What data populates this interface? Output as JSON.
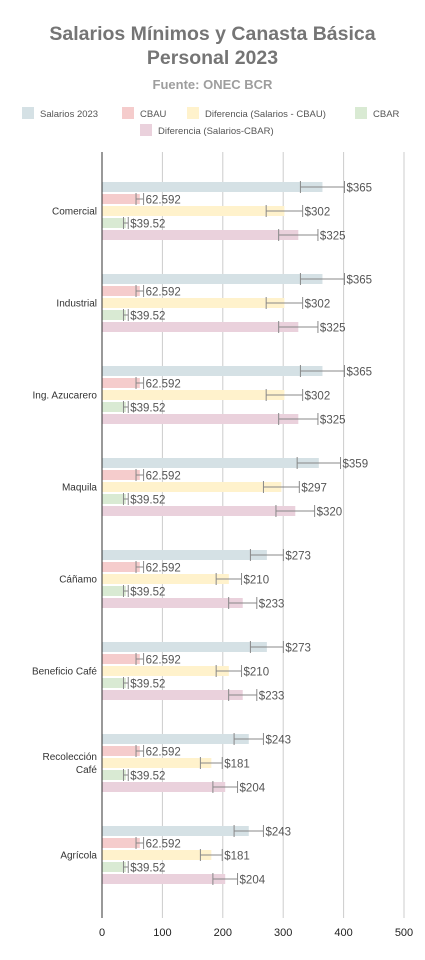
{
  "chart_data": {
    "type": "bar",
    "orientation": "horizontal",
    "title_lines": [
      "Salarios Mínimos y Canasta Básica",
      "Personal 2023"
    ],
    "subtitle": "Fuente: ONEC BCR",
    "xlim": [
      0,
      500
    ],
    "xticks": [
      "0",
      "100",
      "200",
      "300",
      "400",
      "500"
    ],
    "xtick_values": [
      0,
      100,
      200,
      300,
      400,
      500
    ],
    "grid": true,
    "legend_position": "top",
    "categories": [
      {
        "lines": [
          "Comercial"
        ]
      },
      {
        "lines": [
          "Industrial"
        ]
      },
      {
        "lines": [
          "Ing. Azucarero"
        ]
      },
      {
        "lines": [
          "Maquila"
        ]
      },
      {
        "lines": [
          "Cáñamo"
        ]
      },
      {
        "lines": [
          "Beneficio Café"
        ]
      },
      {
        "lines": [
          "Recolección",
          "Café"
        ]
      },
      {
        "lines": [
          "Agrícola"
        ]
      }
    ],
    "series": [
      {
        "name": "Salarios 2023",
        "color": "#d5e1e5",
        "values": [
          365,
          365,
          365,
          359,
          273,
          273,
          243,
          243
        ],
        "labels": [
          "$365",
          "$365",
          "$365",
          "$359",
          "$273",
          "$273",
          "$243",
          "$243"
        ]
      },
      {
        "name": "CBAU",
        "color": "#f5cccc",
        "values": [
          62.592,
          62.592,
          62.592,
          62.592,
          62.592,
          62.592,
          62.592,
          62.592
        ],
        "labels": [
          "62.592",
          "62.592",
          "62.592",
          "62.592",
          "62.592",
          "62.592",
          "62.592",
          "62.592"
        ]
      },
      {
        "name": "Diferencia (Salarios - CBAU)",
        "color": "#fff2cc",
        "values": [
          302,
          302,
          302,
          297,
          210,
          210,
          181,
          181
        ],
        "labels": [
          "$302",
          "$302",
          "$302",
          "$297",
          "$210",
          "$210",
          "$181",
          "$181"
        ]
      },
      {
        "name": "CBAR",
        "color": "#d9ead3",
        "values": [
          39.52,
          39.52,
          39.52,
          39.52,
          39.52,
          39.52,
          39.52,
          39.52
        ],
        "labels": [
          "$39.52",
          "$39.52",
          "$39.52",
          "$39.52",
          "$39.52",
          "$39.52",
          "$39.52",
          "$39.52"
        ]
      },
      {
        "name": "Diferencia (Salarios-CBAR)",
        "color": "#ead1dc",
        "values": [
          325,
          325,
          325,
          320,
          233,
          233,
          204,
          204
        ],
        "labels": [
          "$325",
          "$325",
          "$325",
          "$320",
          "$233",
          "$233",
          "$204",
          "$204"
        ]
      }
    ],
    "error_bars": "±10%"
  }
}
